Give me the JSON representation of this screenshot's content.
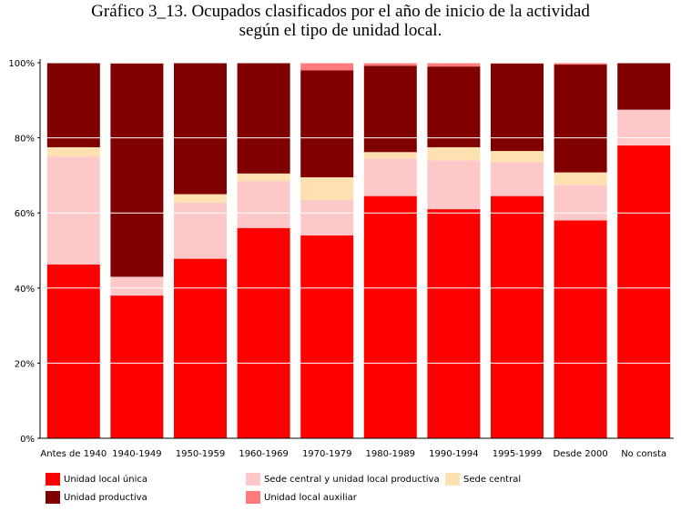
{
  "title_line1": "Gráfico 3_13. Ocupados clasificados por el año de inicio de la actividad",
  "title_line2": "según el tipo de unidad local.",
  "chart_data": {
    "type": "bar",
    "stacked": true,
    "orientation": "vertical",
    "categories": [
      "Antes de 1940",
      "1940-1949",
      "1950-1959",
      "1960-1969",
      "1970-1979",
      "1980-1989",
      "1990-1994",
      "1995-1999",
      "Desde 2000",
      "No consta"
    ],
    "series": [
      {
        "name": "Unidad local única",
        "color": "#ff0000",
        "values": [
          46.3,
          38.0,
          47.8,
          56.0,
          54.0,
          64.5,
          61.0,
          64.5,
          58.0,
          78.0
        ]
      },
      {
        "name": "Sede central y unidad local productiva",
        "color": "#ffc8c8",
        "values": [
          28.7,
          5.0,
          15.0,
          12.5,
          9.5,
          10.0,
          13.0,
          9.0,
          9.5,
          9.5
        ]
      },
      {
        "name": "Sede central",
        "color": "#ffe0b0",
        "values": [
          2.5,
          0.0,
          2.2,
          2.0,
          6.0,
          1.7,
          3.5,
          3.0,
          3.3,
          0.0
        ]
      },
      {
        "name": "Unidad productiva",
        "color": "#800000",
        "values": [
          22.5,
          56.8,
          35.0,
          29.5,
          28.5,
          23.0,
          21.5,
          23.3,
          28.7,
          12.5
        ]
      },
      {
        "name": "Unidad local auxiliar",
        "color": "#ff7a7a",
        "values": [
          0.0,
          0.2,
          0.0,
          0.0,
          2.0,
          0.8,
          1.0,
          0.2,
          0.5,
          0.0
        ]
      }
    ],
    "y_ticks": [
      "0%",
      "20%",
      "40%",
      "60%",
      "80%",
      "100%"
    ],
    "ylim": [
      0,
      100
    ],
    "grid": true,
    "legend": "bottom"
  },
  "legend": [
    {
      "label": "Unidad local única",
      "color": "#ff0000"
    },
    {
      "label": "Sede central y unidad local productiva",
      "color": "#ffc8c8"
    },
    {
      "label": "Sede central",
      "color": "#ffe0b0"
    },
    {
      "label": "Unidad productiva",
      "color": "#800000"
    },
    {
      "label": "Unidad local auxiliar",
      "color": "#ff7a7a"
    }
  ]
}
